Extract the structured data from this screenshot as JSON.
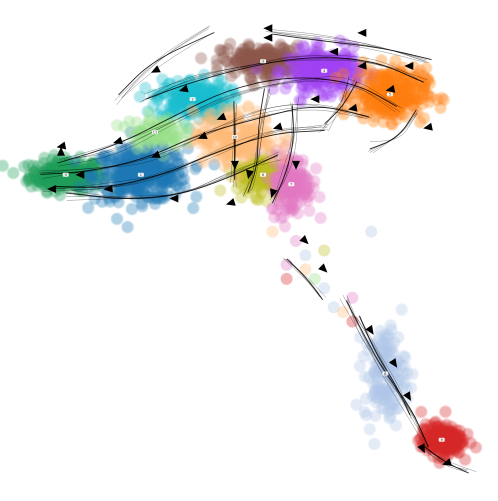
{
  "chart_data": {
    "type": "scatter",
    "subtype": "embedding with velocity streamlines",
    "title": "",
    "xlabel": "",
    "ylabel": "",
    "axes_visible": false,
    "grid": false,
    "legend": "none",
    "clusters": [
      {
        "id": "0",
        "color": "#1f9e5a",
        "centroid": [
          0.11,
          0.66
        ],
        "spread": [
          0.07,
          0.03
        ],
        "n": 260
      },
      {
        "id": "1",
        "color": "#1f77b4",
        "centroid": [
          0.27,
          0.66
        ],
        "spread": [
          0.09,
          0.05
        ],
        "n": 360
      },
      {
        "id": "2",
        "color": "#17becf",
        "centroid": [
          0.38,
          0.82
        ],
        "spread": [
          0.07,
          0.04
        ],
        "n": 220
      },
      {
        "id": "3",
        "color": "#8c564b",
        "centroid": [
          0.53,
          0.9
        ],
        "spread": [
          0.08,
          0.03
        ],
        "n": 200
      },
      {
        "id": "4",
        "color": "#a142f4",
        "centroid": [
          0.66,
          0.88
        ],
        "spread": [
          0.07,
          0.04
        ],
        "n": 260
      },
      {
        "id": "5",
        "color": "#ff7f0e",
        "centroid": [
          0.8,
          0.83
        ],
        "spread": [
          0.07,
          0.05
        ],
        "n": 300
      },
      {
        "id": "6",
        "color": "#bcbd22",
        "centroid": [
          0.53,
          0.66
        ],
        "spread": [
          0.05,
          0.04
        ],
        "n": 160
      },
      {
        "id": "7",
        "color": "#e377c2",
        "centroid": [
          0.59,
          0.64
        ],
        "spread": [
          0.04,
          0.06
        ],
        "n": 170
      },
      {
        "id": "8",
        "color": "#aec7e8",
        "centroid": [
          0.79,
          0.24
        ],
        "spread": [
          0.04,
          0.09
        ],
        "n": 150
      },
      {
        "id": "9",
        "color": "#d62728",
        "centroid": [
          0.91,
          0.1
        ],
        "spread": [
          0.04,
          0.03
        ],
        "n": 220
      },
      {
        "id": "10",
        "color": "#ffbb78",
        "centroid": [
          0.47,
          0.74
        ],
        "spread": [
          0.08,
          0.05
        ],
        "n": 200
      },
      {
        "id": "11",
        "color": "#98df8a",
        "centroid": [
          0.3,
          0.75
        ],
        "spread": [
          0.05,
          0.03
        ],
        "n": 90
      }
    ],
    "streamlines": [
      {
        "points": [
          [
            0.42,
            0.97
          ],
          [
            0.3,
            0.9
          ],
          [
            0.22,
            0.82
          ]
        ]
      },
      {
        "points": [
          [
            0.88,
            0.9
          ],
          [
            0.78,
            0.93
          ],
          [
            0.66,
            0.95
          ],
          [
            0.55,
            0.96
          ]
        ]
      },
      {
        "points": [
          [
            0.87,
            0.86
          ],
          [
            0.76,
            0.9
          ],
          [
            0.62,
            0.91
          ],
          [
            0.48,
            0.89
          ],
          [
            0.36,
            0.86
          ],
          [
            0.28,
            0.82
          ]
        ]
      },
      {
        "points": [
          [
            0.82,
            0.8
          ],
          [
            0.72,
            0.86
          ],
          [
            0.6,
            0.86
          ],
          [
            0.46,
            0.83
          ],
          [
            0.34,
            0.78
          ],
          [
            0.22,
            0.72
          ],
          [
            0.1,
            0.69
          ]
        ]
      },
      {
        "points": [
          [
            0.75,
            0.78
          ],
          [
            0.64,
            0.81
          ],
          [
            0.52,
            0.79
          ],
          [
            0.4,
            0.74
          ],
          [
            0.28,
            0.69
          ],
          [
            0.16,
            0.66
          ],
          [
            0.06,
            0.66
          ]
        ]
      },
      {
        "points": [
          [
            0.66,
            0.76
          ],
          [
            0.55,
            0.75
          ],
          [
            0.44,
            0.71
          ],
          [
            0.32,
            0.66
          ],
          [
            0.2,
            0.63
          ],
          [
            0.08,
            0.63
          ]
        ]
      },
      {
        "points": [
          [
            0.56,
            0.7
          ],
          [
            0.46,
            0.66
          ],
          [
            0.36,
            0.62
          ],
          [
            0.24,
            0.61
          ],
          [
            0.12,
            0.62
          ]
        ]
      },
      {
        "points": [
          [
            0.6,
            0.82
          ],
          [
            0.6,
            0.74
          ],
          [
            0.58,
            0.66
          ],
          [
            0.55,
            0.6
          ]
        ]
      },
      {
        "points": [
          [
            0.54,
            0.84
          ],
          [
            0.53,
            0.76
          ],
          [
            0.52,
            0.68
          ],
          [
            0.5,
            0.62
          ]
        ]
      },
      {
        "points": [
          [
            0.47,
            0.8
          ],
          [
            0.47,
            0.72
          ],
          [
            0.47,
            0.64
          ]
        ]
      },
      {
        "points": [
          [
            0.72,
            0.86
          ],
          [
            0.7,
            0.8
          ],
          [
            0.66,
            0.76
          ]
        ]
      },
      {
        "points": [
          [
            0.86,
            0.79
          ],
          [
            0.82,
            0.74
          ],
          [
            0.76,
            0.71
          ]
        ]
      },
      {
        "points": [
          [
            0.7,
            0.4
          ],
          [
            0.74,
            0.32
          ],
          [
            0.79,
            0.24
          ],
          [
            0.84,
            0.16
          ],
          [
            0.88,
            0.08
          ]
        ]
      },
      {
        "points": [
          [
            0.73,
            0.36
          ],
          [
            0.77,
            0.28
          ],
          [
            0.82,
            0.2
          ],
          [
            0.85,
            0.14
          ]
        ]
      },
      {
        "points": [
          [
            0.97,
            0.03
          ],
          [
            0.92,
            0.05
          ],
          [
            0.87,
            0.08
          ]
        ]
      },
      {
        "points": [
          [
            0.58,
            0.48
          ],
          [
            0.62,
            0.44
          ],
          [
            0.66,
            0.4
          ]
        ]
      }
    ],
    "arrows": [
      {
        "at": [
          0.44,
          0.78
        ],
        "dir": [
          -1,
          -0.4
        ]
      },
      {
        "at": [
          0.36,
          0.84
        ],
        "dir": [
          -1,
          -0.3
        ]
      },
      {
        "at": [
          0.3,
          0.88
        ],
        "dir": [
          -1,
          -0.5
        ]
      },
      {
        "at": [
          0.22,
          0.73
        ],
        "dir": [
          -1,
          -0.3
        ]
      },
      {
        "at": [
          0.3,
          0.7
        ],
        "dir": [
          -1,
          -0.4
        ]
      },
      {
        "at": [
          0.14,
          0.66
        ],
        "dir": [
          -1,
          0
        ]
      },
      {
        "at": [
          0.2,
          0.63
        ],
        "dir": [
          -1,
          -0.1
        ]
      },
      {
        "at": [
          0.08,
          0.63
        ],
        "dir": [
          -1,
          0
        ]
      },
      {
        "at": [
          0.1,
          0.72
        ],
        "dir": [
          -1,
          -0.2
        ]
      },
      {
        "at": [
          0.54,
          0.95
        ],
        "dir": [
          -1,
          0
        ]
      },
      {
        "at": [
          0.68,
          0.92
        ],
        "dir": [
          -1,
          0
        ]
      },
      {
        "at": [
          0.74,
          0.89
        ],
        "dir": [
          -1,
          -0.1
        ]
      },
      {
        "at": [
          0.84,
          0.89
        ],
        "dir": [
          -1,
          0
        ]
      },
      {
        "at": [
          0.8,
          0.84
        ],
        "dir": [
          -1,
          -0.2
        ]
      },
      {
        "at": [
          0.64,
          0.82
        ],
        "dir": [
          -1,
          0
        ]
      },
      {
        "at": [
          0.56,
          0.76
        ],
        "dir": [
          -1,
          -0.3
        ]
      },
      {
        "at": [
          0.6,
          0.68
        ],
        "dir": [
          0,
          -1
        ]
      },
      {
        "at": [
          0.55,
          0.62
        ],
        "dir": [
          -0.3,
          -1
        ]
      },
      {
        "at": [
          0.5,
          0.66
        ],
        "dir": [
          -0.2,
          -1
        ]
      },
      {
        "at": [
          0.47,
          0.68
        ],
        "dir": [
          0,
          -1
        ]
      },
      {
        "at": [
          0.4,
          0.74
        ],
        "dir": [
          -1,
          -0.4
        ]
      },
      {
        "at": [
          0.46,
          0.6
        ],
        "dir": [
          -1,
          -0.3
        ]
      },
      {
        "at": [
          0.34,
          0.61
        ],
        "dir": [
          -1,
          0
        ]
      },
      {
        "at": [
          0.72,
          0.8
        ],
        "dir": [
          -1,
          -0.2
        ]
      },
      {
        "at": [
          0.88,
          0.76
        ],
        "dir": [
          -1,
          -0.2
        ]
      },
      {
        "at": [
          0.62,
          0.52
        ],
        "dir": [
          1,
          -1
        ]
      },
      {
        "at": [
          0.66,
          0.46
        ],
        "dir": [
          1,
          -1
        ]
      },
      {
        "at": [
          0.76,
          0.33
        ],
        "dir": [
          1,
          -1.5
        ]
      },
      {
        "at": [
          0.81,
          0.26
        ],
        "dir": [
          1,
          -1.5
        ]
      },
      {
        "at": [
          0.84,
          0.19
        ],
        "dir": [
          0.6,
          -1
        ]
      },
      {
        "at": [
          0.87,
          0.08
        ],
        "dir": [
          0.5,
          -1
        ]
      },
      {
        "at": [
          0.92,
          0.05
        ],
        "dir": [
          -1,
          -0.3
        ]
      },
      {
        "at": [
          0.1,
          0.71
        ],
        "dir": [
          0,
          1
        ]
      },
      {
        "at": [
          0.74,
          0.96
        ],
        "dir": [
          -1,
          0
        ]
      },
      {
        "at": [
          0.54,
          0.97
        ],
        "dir": [
          -1,
          0
        ]
      }
    ],
    "bridge_points": [
      {
        "x": 0.58,
        "y": 0.47,
        "c": "7"
      },
      {
        "x": 0.62,
        "y": 0.46,
        "c": "10"
      },
      {
        "x": 0.64,
        "y": 0.44,
        "c": "11"
      },
      {
        "x": 0.58,
        "y": 0.44,
        "c": "9"
      },
      {
        "x": 0.66,
        "y": 0.42,
        "c": "8"
      },
      {
        "x": 0.68,
        "y": 0.38,
        "c": "8"
      },
      {
        "x": 0.7,
        "y": 0.37,
        "c": "10"
      },
      {
        "x": 0.72,
        "y": 0.4,
        "c": "7"
      },
      {
        "x": 0.76,
        "y": 0.54,
        "c": "8"
      },
      {
        "x": 0.6,
        "y": 0.52,
        "c": "7"
      },
      {
        "x": 0.66,
        "y": 0.5,
        "c": "6"
      },
      {
        "x": 0.72,
        "y": 0.35,
        "c": "9"
      },
      {
        "x": 0.62,
        "y": 0.49,
        "c": "8"
      },
      {
        "x": 0.55,
        "y": 0.54,
        "c": "10"
      }
    ]
  }
}
